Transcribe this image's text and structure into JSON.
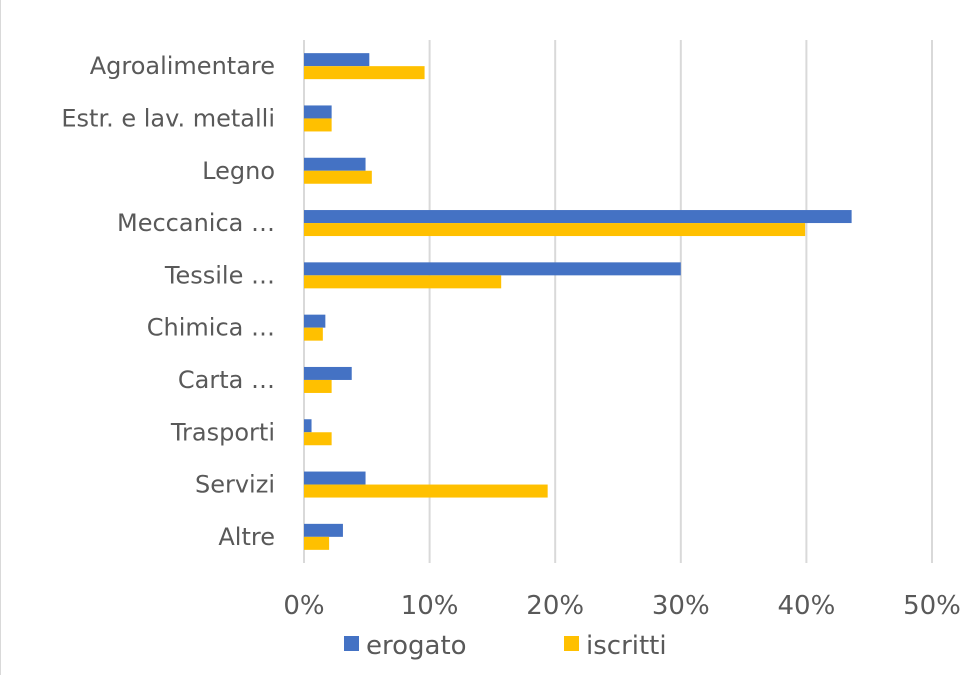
{
  "chart_data": {
    "type": "bar",
    "orientation": "horizontal",
    "categories": [
      "Agroalimentare",
      "Estr. e lav. metalli",
      "Legno",
      "Meccanica …",
      "Tessile …",
      "Chimica …",
      "Carta …",
      "Trasporti",
      "Servizi",
      "Altre"
    ],
    "series": [
      {
        "name": "erogato",
        "color": "#4472c4",
        "values": [
          5.2,
          2.2,
          4.9,
          43.6,
          30.0,
          1.7,
          3.8,
          0.6,
          4.9,
          3.1
        ]
      },
      {
        "name": "iscritti",
        "color": "#ffc000",
        "values": [
          9.6,
          2.2,
          5.4,
          39.9,
          15.7,
          1.5,
          2.2,
          2.2,
          19.4,
          2.0
        ]
      }
    ],
    "xlim": [
      0,
      50
    ],
    "x_ticks": [
      0,
      10,
      20,
      30,
      40,
      50
    ],
    "x_tick_labels": [
      "0%",
      "10%",
      "20%",
      "30%",
      "40%",
      "50%"
    ],
    "grid": "vertical",
    "legend": "bottom",
    "title": "",
    "xlabel": "",
    "ylabel": ""
  }
}
